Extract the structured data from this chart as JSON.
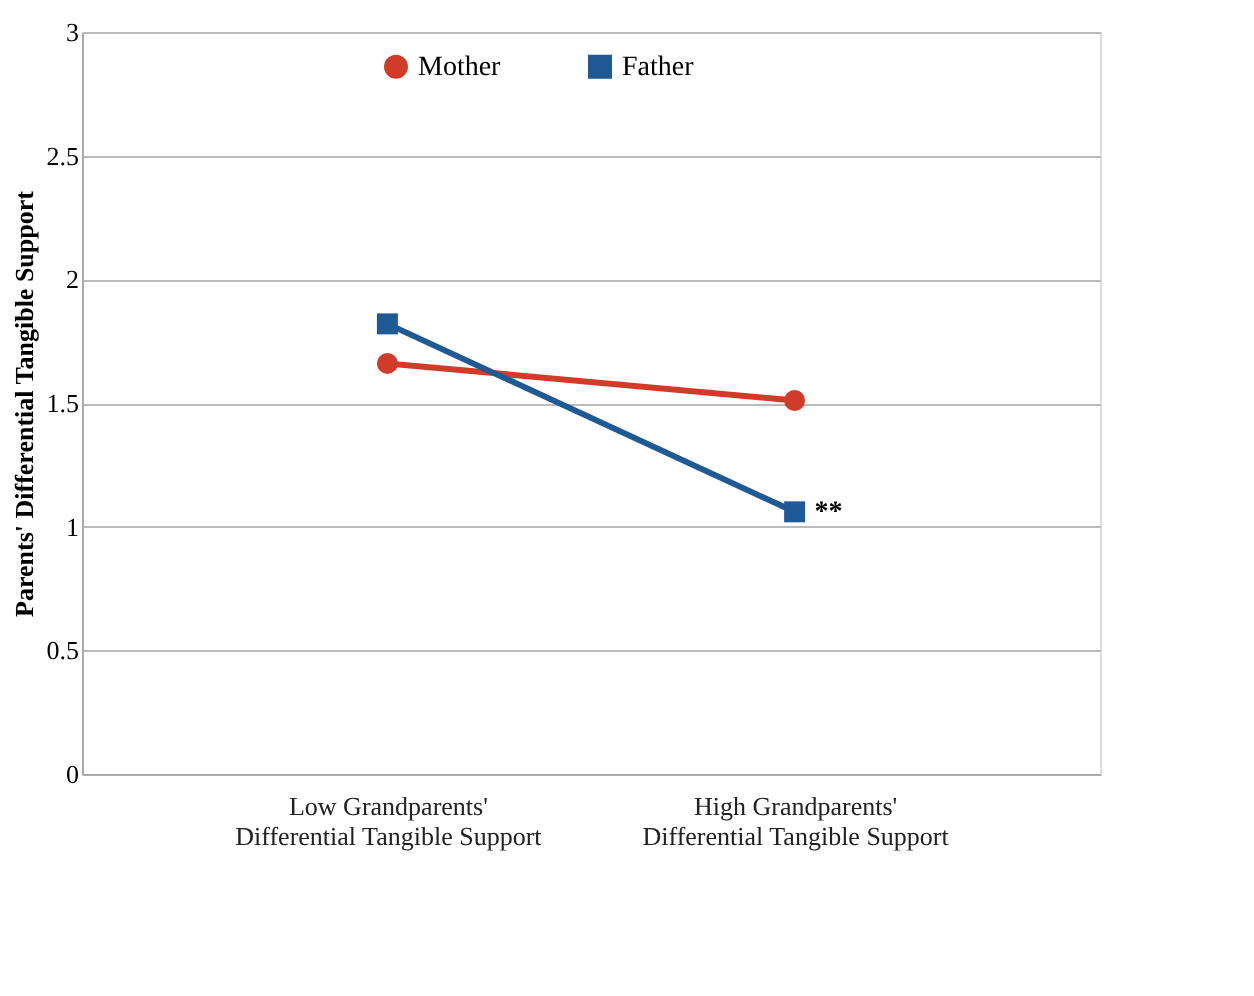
{
  "chart_data": {
    "type": "line",
    "ylabel": "Parents' Differential Tangible Support",
    "categories": [
      "Low Grandparents'\nDifferential Tangible Support",
      "High Grandparents'\nDifferential Tangible Support"
    ],
    "series": [
      {
        "name": "Mother",
        "color": "#d13b2a",
        "marker": "circle",
        "values": [
          1.66,
          1.51
        ]
      },
      {
        "name": "Father",
        "color": "#1f5a96",
        "marker": "square",
        "values": [
          1.82,
          1.06
        ]
      }
    ],
    "ylim": [
      0,
      3
    ],
    "yticks": [
      0,
      0.5,
      1,
      1.5,
      2,
      2.5,
      3
    ],
    "grid": "y",
    "legend": "top",
    "annotations": [
      {
        "text": "**",
        "x": "High Grandparents'\nDifferential Tangible Support",
        "y": 1.06
      }
    ]
  }
}
